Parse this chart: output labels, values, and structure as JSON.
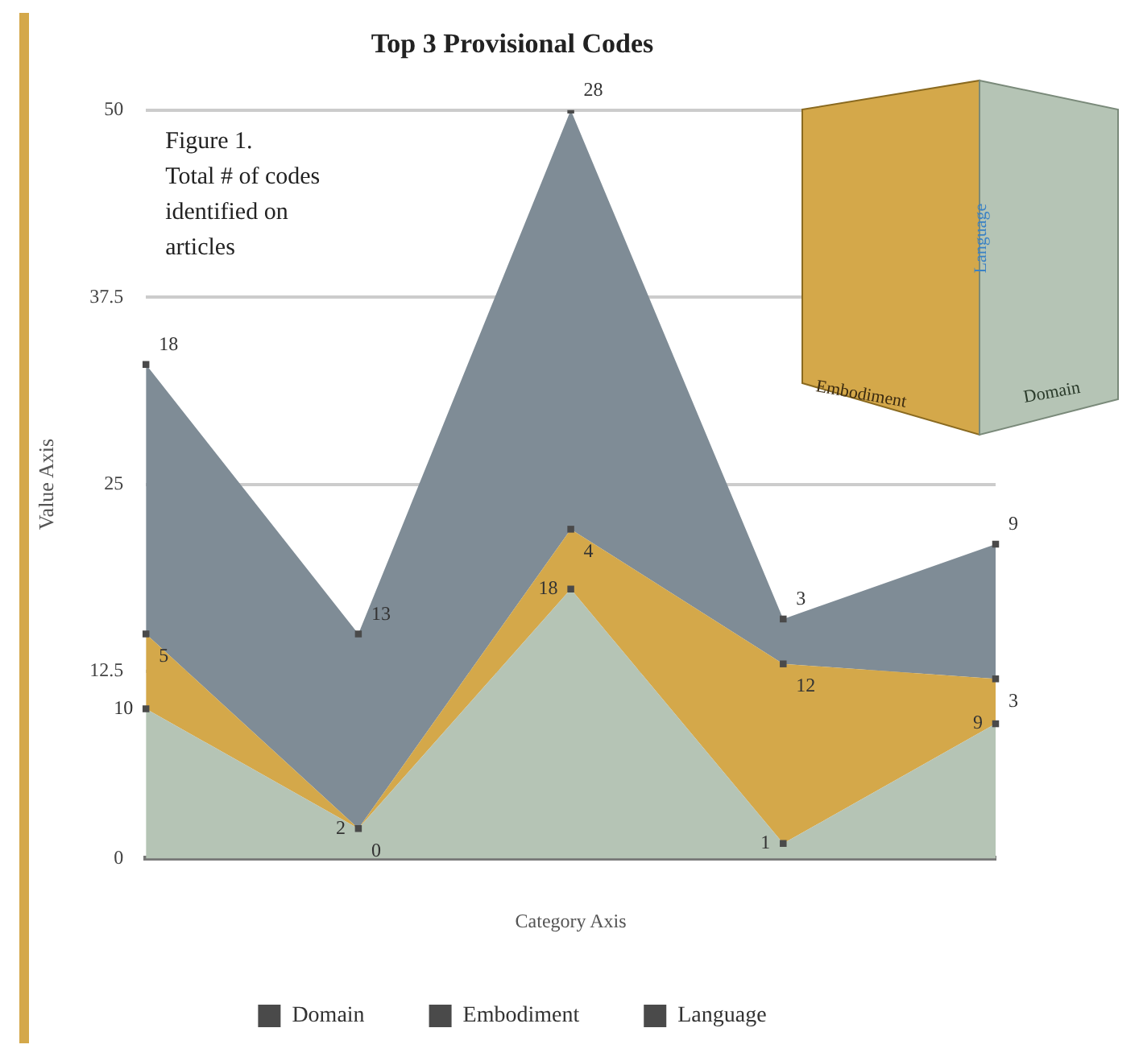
{
  "chart_data": {
    "type": "area",
    "title": "Top 3 Provisional Codes",
    "xlabel": "Category Axis",
    "ylabel": "Value Axis",
    "annotations": [
      "Figure 1.\nTotal # of codes\nidentified on\narticles"
    ],
    "categories": [
      null,
      null,
      null,
      null,
      null
    ],
    "stacked": true,
    "series": [
      {
        "name": "Domain",
        "color": "#b5c4b5",
        "values": [
          10,
          2,
          18,
          1,
          9
        ]
      },
      {
        "name": "Embodiment",
        "color": "#d4a84a",
        "values": [
          5,
          0,
          4,
          12,
          3
        ]
      },
      {
        "name": "Language",
        "color": "#7f8c96",
        "values": [
          18,
          13,
          28,
          3,
          9
        ]
      }
    ],
    "ylim": [
      0,
      50
    ],
    "yticks": [
      0,
      12.5,
      25,
      37.5,
      50
    ],
    "grid": "y",
    "legend": "bottom",
    "marker": "square",
    "data_labels": true
  }
}
